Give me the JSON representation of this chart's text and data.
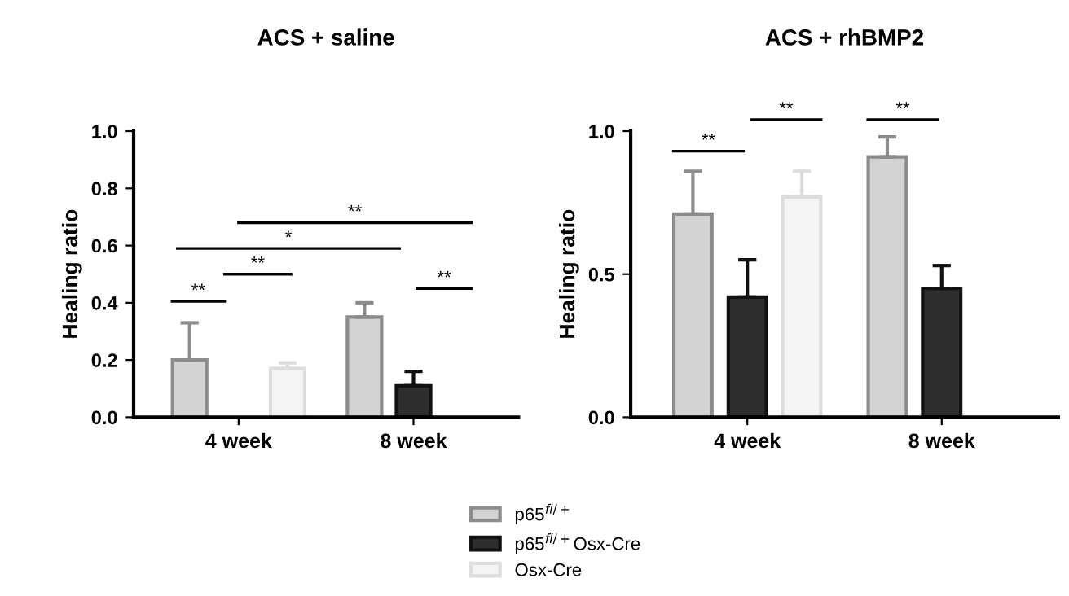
{
  "chart_data": [
    {
      "type": "bar",
      "title": "ACS + saline",
      "ylabel": "Healing ratio",
      "categories": [
        "4 week",
        "8 week"
      ],
      "series": [
        {
          "name": "p65$^{fl/+}$",
          "color": "#d3d3d3",
          "values": [
            0.2,
            0.35
          ],
          "errors": [
            0.13,
            0.05
          ]
        },
        {
          "name": "p65$^{fl/+}$Osx-Cre",
          "color": "#2e2e2e",
          "values": [
            null,
            0.11
          ],
          "errors": [
            null,
            0.05
          ]
        },
        {
          "name": "Osx-Cre",
          "color": "#f4f4f4",
          "values": [
            0.17,
            null
          ],
          "errors": [
            0.02,
            null
          ]
        }
      ],
      "ylim": [
        0,
        1.0
      ],
      "yticks": [
        {
          "value": 0,
          "label": "0.0"
        },
        0.2,
        0.4,
        0.6,
        0.8,
        {
          "value": 1.0,
          "label": "1.0"
        }
      ],
      "annotations": [
        "**",
        "**",
        "*",
        "**",
        "**"
      ],
      "legend": "bottom",
      "grid": false
    },
    {
      "type": "bar",
      "title": "ACS + rhBMP2",
      "ylabel": "Healing ratio",
      "categories": [
        "4 week",
        "8 week"
      ],
      "series": [
        {
          "name": "p65$^{fl/+}$",
          "color": "#d3d3d3",
          "values": [
            0.71,
            0.91
          ],
          "errors": [
            0.15,
            0.07
          ]
        },
        {
          "name": "p65$^{fl/+}$Osx-Cre",
          "color": "#2e2e2e",
          "values": [
            0.42,
            0.45
          ],
          "errors": [
            0.13,
            0.08
          ]
        },
        {
          "name": "Osx-Cre",
          "color": "#f4f4f4",
          "values": [
            0.77,
            null
          ],
          "errors": [
            0.09,
            null
          ]
        }
      ],
      "ylim": [
        0,
        1.0
      ],
      "yticks": [
        {
          "value": 0,
          "label": "0.0"
        },
        {
          "value": 0.5,
          "label": "0.5"
        },
        {
          "value": 1.0,
          "label": "1.0"
        }
      ],
      "annotations": [
        "**",
        "**",
        "**"
      ],
      "grid": false
    }
  ]
}
